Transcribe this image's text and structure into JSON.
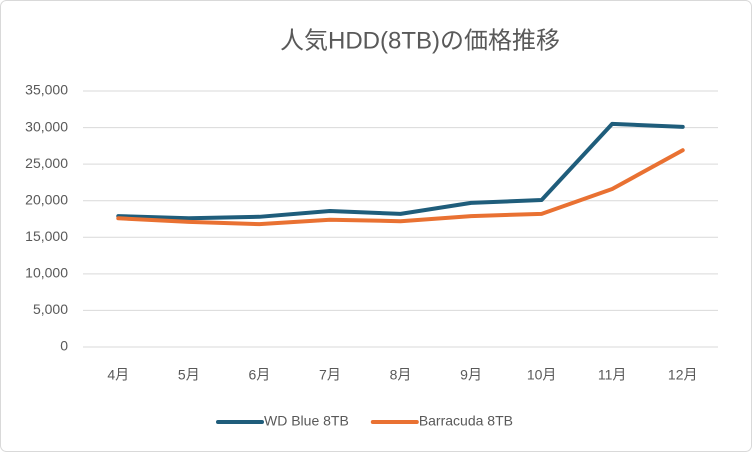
{
  "chart_data": {
    "type": "line",
    "title": "人気HDD(8TB)の価格推移",
    "categories": [
      "4月",
      "5月",
      "6月",
      "7月",
      "8月",
      "9月",
      "10月",
      "11月",
      "12月"
    ],
    "series": [
      {
        "name": "WD Blue 8TB",
        "color": "#1f5d7b",
        "values": [
          17900,
          17600,
          17800,
          18600,
          18200,
          19700,
          20100,
          30500,
          30100
        ]
      },
      {
        "name": "Barracuda 8TB",
        "color": "#e97132",
        "values": [
          17600,
          17100,
          16800,
          17400,
          17200,
          17900,
          18200,
          21600,
          26900
        ]
      }
    ],
    "ylim": [
      0,
      35000
    ],
    "yticks": [
      0,
      {
        "value": 5000,
        "label": "5,000"
      },
      {
        "value": 10000,
        "label": "10,000"
      },
      {
        "value": 15000,
        "label": "15,000"
      },
      {
        "value": 20000,
        "label": "20,000"
      },
      {
        "value": 25000,
        "label": "25,000"
      },
      {
        "value": 30000,
        "label": "30,000"
      },
      {
        "value": 35000,
        "label": "35,000"
      }
    ],
    "grid": true,
    "legend": "bottom"
  }
}
